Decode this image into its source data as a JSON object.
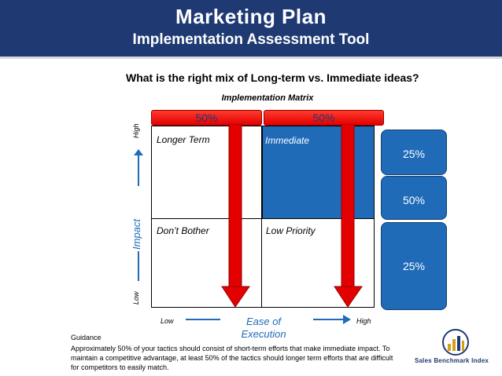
{
  "header": {
    "title": "Marketing Plan",
    "subtitle": "Implementation Assessment Tool"
  },
  "question": "What is the right mix of Long-term vs. Immediate ideas?",
  "matrix": {
    "title": "Implementation Matrix",
    "top_bars": [
      {
        "label": "50%"
      },
      {
        "label": "50%"
      }
    ],
    "cells": {
      "top_left": "Longer Term",
      "top_right": "Immediate",
      "bottom_left": "Don’t Bother",
      "bottom_right": "Low Priority"
    },
    "y_axis": {
      "label": "Impact",
      "high": "High",
      "low": "Low"
    },
    "x_axis": {
      "label_line1": "Ease of",
      "label_line2": "Execution",
      "low": "Low",
      "high": "High"
    },
    "colors": {
      "header": "#1f3a73",
      "blue": "#1f6bb8",
      "red": "#e30000"
    }
  },
  "side_boxes": [
    "25%",
    "50%",
    "25%"
  ],
  "guidance": {
    "heading": "Guidance",
    "body": "Approximately 50% of your tactics should consist of short-term efforts that make immediate impact.  To maintain a  competitive advantage, at least 50% of the tactics should longer term efforts that are difficult for competitors to easily match."
  },
  "logo": {
    "text": "Sales Benchmark Index",
    "icon": "bar-chart-logo-icon"
  }
}
